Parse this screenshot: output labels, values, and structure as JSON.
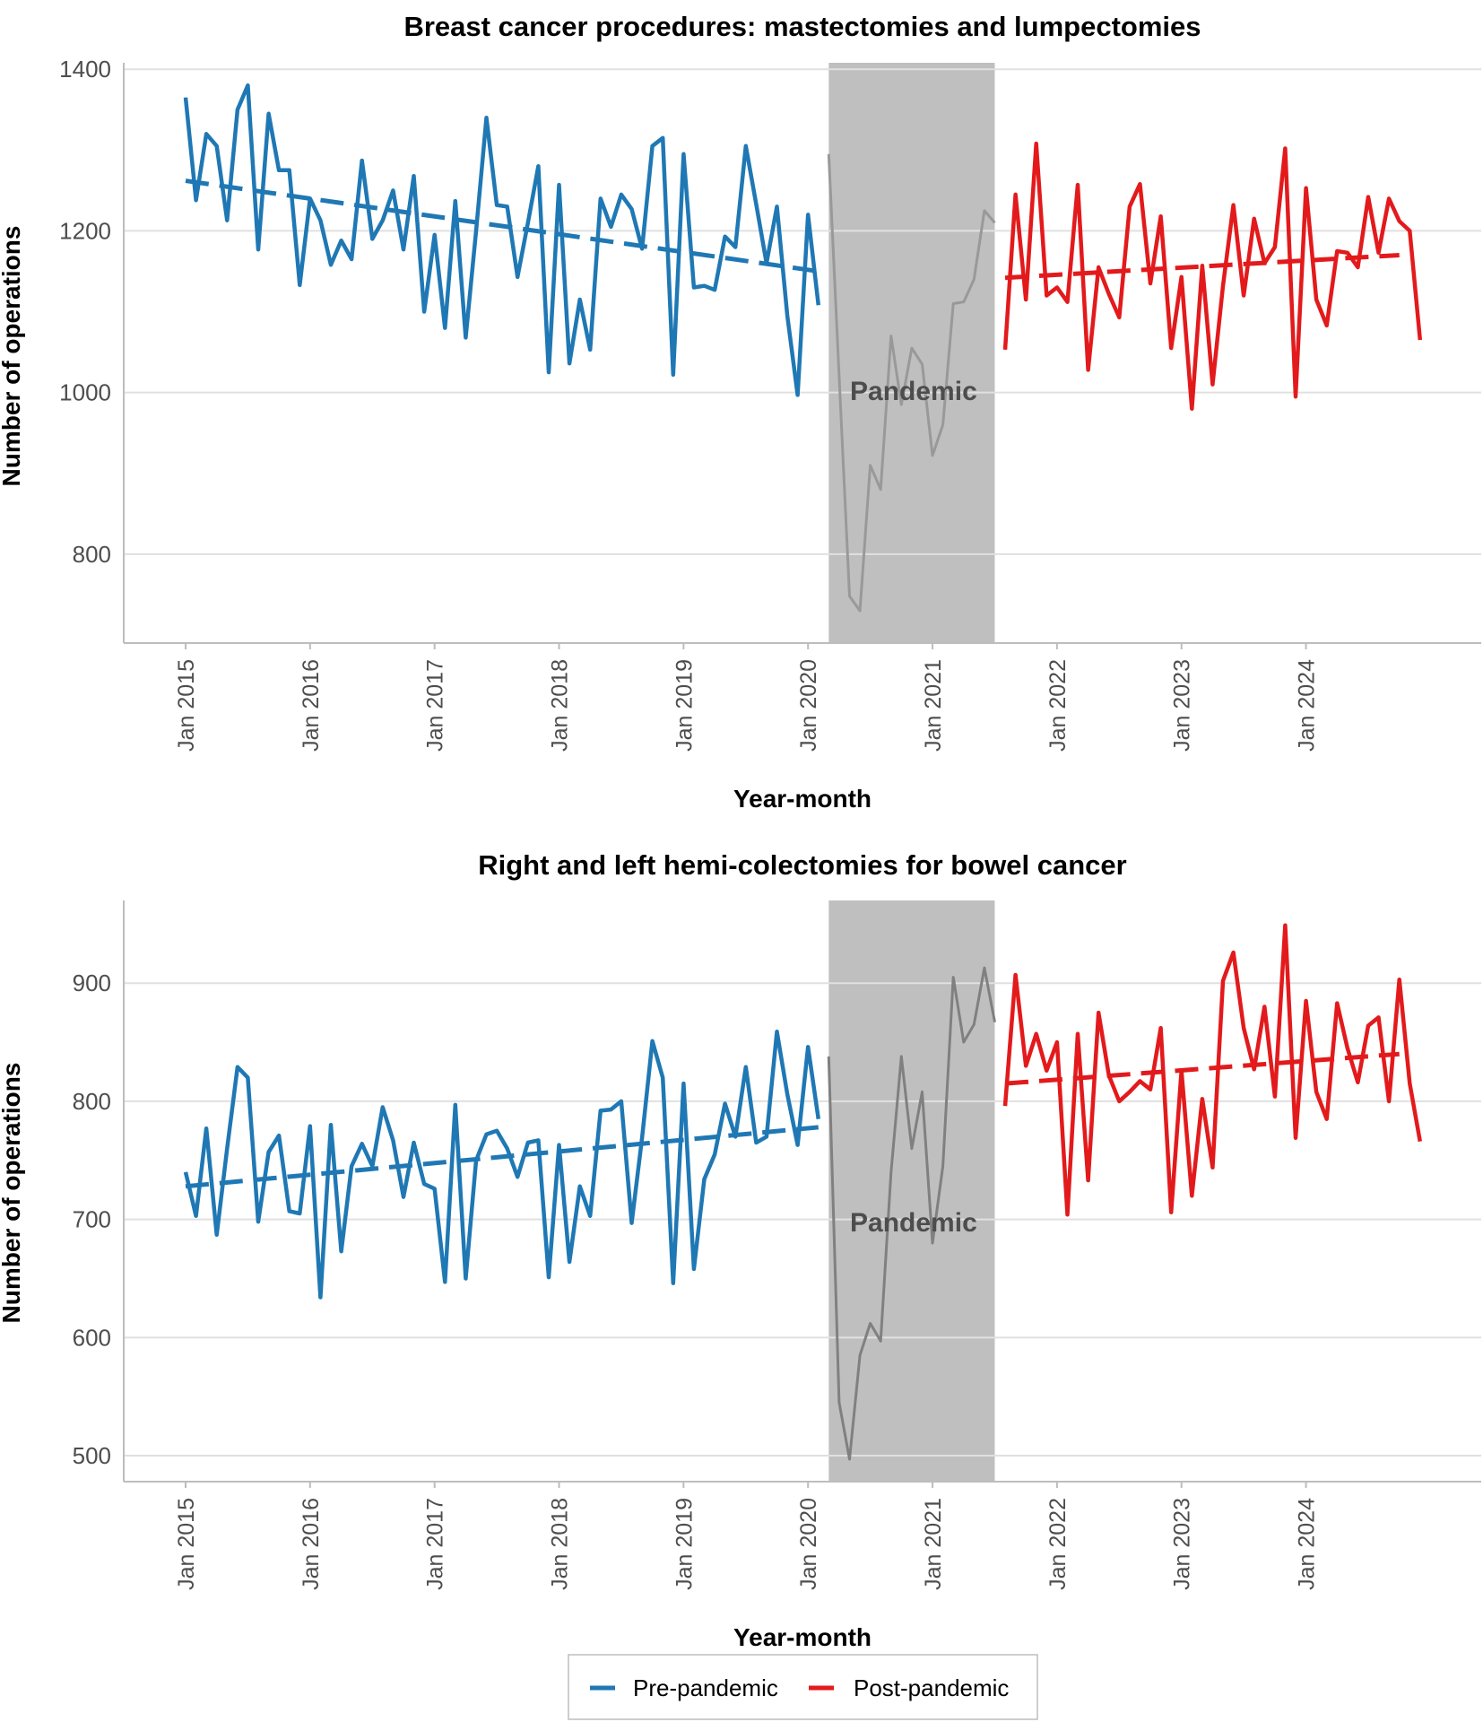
{
  "chart_data": [
    {
      "type": "line",
      "title": "Breast cancer procedures: mastectomies and lumpectomies",
      "xlabel": "Year-month",
      "ylabel": "Number of operations",
      "ylim": [
        690,
        1408
      ],
      "yticks": [
        800,
        1000,
        1200,
        1400
      ],
      "xticks": [
        {
          "label": "Jan 2015",
          "month": 0
        },
        {
          "label": "Jan 2016",
          "month": 12
        },
        {
          "label": "Jan 2017",
          "month": 24
        },
        {
          "label": "Jan 2018",
          "month": 36
        },
        {
          "label": "Jan 2019",
          "month": 48
        },
        {
          "label": "Jan 2020",
          "month": 60
        },
        {
          "label": "Jan 2021",
          "month": 72
        },
        {
          "label": "Jan 2022",
          "month": 84
        },
        {
          "label": "Jan 2023",
          "month": 96
        },
        {
          "label": "Jan 2024",
          "month": 108
        }
      ],
      "shaded_region": {
        "label": "Pandemic",
        "start_month": 62,
        "end_month": 78
      },
      "grid": true,
      "series": [
        {
          "name": "Pre-pandemic",
          "color": "#1f78b4",
          "start_month": 0,
          "values": [
            1365,
            1238,
            1320,
            1305,
            1213,
            1350,
            1380,
            1177,
            1345,
            1275,
            1275,
            1133,
            1240,
            1213,
            1158,
            1188,
            1165,
            1287,
            1190,
            1213,
            1250,
            1177,
            1268,
            1100,
            1195,
            1080,
            1237,
            1068,
            1200,
            1340,
            1232,
            1230,
            1143,
            1210,
            1280,
            1025,
            1257,
            1036,
            1115,
            1053,
            1240,
            1205,
            1245,
            1227,
            1178,
            1305,
            1315,
            1022,
            1295,
            1130,
            1132,
            1127,
            1193,
            1180,
            1305,
            1233,
            1160,
            1230,
            1095,
            997,
            1220,
            1108
          ]
        },
        {
          "name": "Pandemic",
          "color": "#999999",
          "start_month": 62,
          "values": [
            1295,
            1020,
            748,
            730,
            910,
            880,
            1070,
            985,
            1055,
            1035,
            922,
            960,
            1110,
            1112,
            1140,
            1225,
            1210
          ]
        },
        {
          "name": "Post-pandemic",
          "color": "#e31a1c",
          "start_month": 79,
          "values": [
            1053,
            1245,
            1115,
            1308,
            1120,
            1130,
            1112,
            1257,
            1028,
            1155,
            1122,
            1093,
            1230,
            1258,
            1135,
            1218,
            1055,
            1143,
            980,
            1157,
            1010,
            1132,
            1232,
            1120,
            1215,
            1160,
            1180,
            1302,
            995,
            1253,
            1115,
            1083,
            1175,
            1173,
            1155,
            1242,
            1173,
            1240,
            1212,
            1200,
            1065
          ]
        }
      ],
      "trend_lines": [
        {
          "series": "Pre-pandemic",
          "from": {
            "month": 0,
            "value": 1262
          },
          "to": {
            "month": 61,
            "value": 1150
          }
        },
        {
          "series": "Post-pandemic",
          "from": {
            "month": 79,
            "value": 1142
          },
          "to": {
            "month": 117,
            "value": 1170
          }
        }
      ]
    },
    {
      "type": "line",
      "title": "Right and left hemi-colectomies for bowel cancer",
      "xlabel": "Year-month",
      "ylabel": "Number of operations",
      "ylim": [
        478,
        970
      ],
      "yticks": [
        500,
        600,
        700,
        800,
        900
      ],
      "xticks": [
        {
          "label": "Jan 2015",
          "month": 0
        },
        {
          "label": "Jan 2016",
          "month": 12
        },
        {
          "label": "Jan 2017",
          "month": 24
        },
        {
          "label": "Jan 2018",
          "month": 36
        },
        {
          "label": "Jan 2019",
          "month": 48
        },
        {
          "label": "Jan 2020",
          "month": 60
        },
        {
          "label": "Jan 2021",
          "month": 72
        },
        {
          "label": "Jan 2022",
          "month": 84
        },
        {
          "label": "Jan 2023",
          "month": 96
        },
        {
          "label": "Jan 2024",
          "month": 108
        }
      ],
      "shaded_region": {
        "label": "Pandemic",
        "start_month": 62,
        "end_month": 78
      },
      "grid": true,
      "series": [
        {
          "name": "Pre-pandemic",
          "color": "#1f78b4",
          "start_month": 0,
          "values": [
            740,
            703,
            777,
            687,
            760,
            829,
            820,
            698,
            757,
            771,
            707,
            705,
            779,
            634,
            780,
            673,
            745,
            764,
            745,
            795,
            767,
            719,
            765,
            730,
            726,
            647,
            797,
            650,
            750,
            772,
            775,
            760,
            736,
            765,
            767,
            651,
            763,
            664,
            728,
            703,
            792,
            793,
            800,
            697,
            769,
            851,
            820,
            646,
            815,
            658,
            734,
            755,
            798,
            770,
            829,
            765,
            770,
            859,
            806,
            763,
            846,
            785
          ]
        },
        {
          "name": "Pandemic",
          "color": "#808080",
          "start_month": 62,
          "values": [
            838,
            545,
            497,
            585,
            612,
            597,
            740,
            838,
            760,
            808,
            680,
            745,
            905,
            850,
            865,
            913,
            867
          ]
        },
        {
          "name": "Post-pandemic",
          "color": "#e31a1c",
          "start_month": 79,
          "values": [
            796,
            907,
            830,
            857,
            826,
            850,
            704,
            857,
            733,
            875,
            822,
            800,
            808,
            817,
            810,
            862,
            706,
            826,
            720,
            802,
            744,
            902,
            926,
            862,
            827,
            880,
            804,
            949,
            769,
            885,
            808,
            785,
            883,
            845,
            816,
            864,
            871,
            800,
            903,
            815,
            766
          ]
        }
      ],
      "trend_lines": [
        {
          "series": "Pre-pandemic",
          "from": {
            "month": 0,
            "value": 728
          },
          "to": {
            "month": 61,
            "value": 778
          }
        },
        {
          "series": "Post-pandemic",
          "from": {
            "month": 79,
            "value": 815
          },
          "to": {
            "month": 117,
            "value": 840
          }
        }
      ]
    }
  ],
  "legend": {
    "position": "bottom",
    "items": [
      {
        "label": "Pre-pandemic",
        "color": "#1f78b4"
      },
      {
        "label": "Post-pandemic",
        "color": "#e31a1c"
      }
    ]
  }
}
